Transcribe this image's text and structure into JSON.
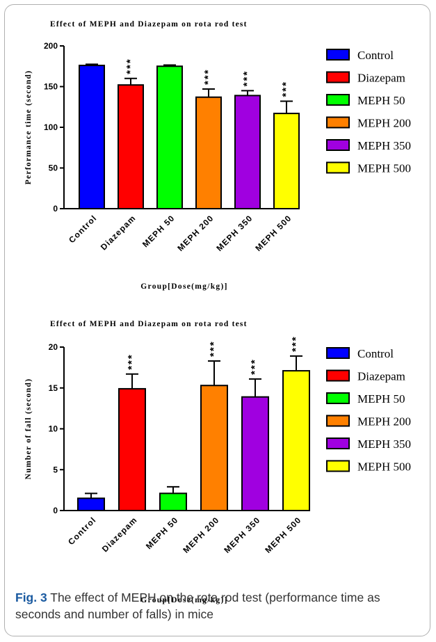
{
  "chart_data": [
    {
      "type": "bar",
      "title": "Effect of MEPH and Diazepam on rota rod test",
      "xlabel": "Group[Dose(mg/kg)]",
      "ylabel": "Performance time (second)",
      "ylim": [
        0,
        200
      ],
      "yticks": [
        0,
        50,
        100,
        150,
        200
      ],
      "categories": [
        "Control",
        "Diazepam",
        "MEPH 50",
        "MEPH 200",
        "MEPH 350",
        "MEPH 500"
      ],
      "values": [
        176,
        152,
        175,
        137,
        139,
        117
      ],
      "errors": [
        1.5,
        8,
        1.5,
        10,
        6,
        15
      ],
      "significance": [
        "",
        "***",
        "",
        "***",
        "***",
        "***"
      ],
      "colors": [
        "#0000ff",
        "#ff0000",
        "#00ff00",
        "#ff8000",
        "#a000e0",
        "#ffff00"
      ],
      "legend": [
        "Control",
        "Diazepam",
        "MEPH 50",
        "MEPH 200",
        "MEPH 350",
        "MEPH 500"
      ],
      "legend_position": "right",
      "grid": false
    },
    {
      "type": "bar",
      "title": "Effect of MEPH and Diazepam on rota rod test",
      "xlabel": "Group[Dose(mg/kg)]",
      "ylabel": "Number of fall (second)",
      "ylim": [
        0,
        20
      ],
      "yticks": [
        0,
        5,
        10,
        15,
        20
      ],
      "categories": [
        "Control",
        "Diazepam",
        "MEPH 50",
        "MEPH 200",
        "MEPH 350",
        "MEPH 500"
      ],
      "values": [
        1.5,
        14.9,
        2.1,
        15.3,
        13.9,
        17.1
      ],
      "errors": [
        0.6,
        1.8,
        0.8,
        3.0,
        2.2,
        1.8
      ],
      "significance": [
        "",
        "***",
        "",
        "***",
        "***",
        "***"
      ],
      "colors": [
        "#0000ff",
        "#ff0000",
        "#00ff00",
        "#ff8000",
        "#a000e0",
        "#ffff00"
      ],
      "legend": [
        "Control",
        "Diazepam",
        "MEPH 50",
        "MEPH 200",
        "MEPH 350",
        "MEPH 500"
      ],
      "legend_position": "right",
      "grid": false
    }
  ],
  "caption": {
    "label": "Fig. 3",
    "text": " The effect of MEPH on the rota rod test (performance time as seconds and number of falls) in mice"
  }
}
